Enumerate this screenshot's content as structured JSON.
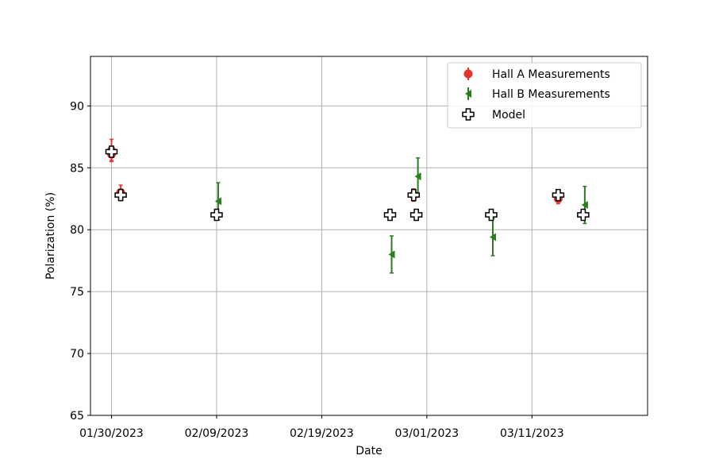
{
  "chart_data": {
    "type": "scatter",
    "xlabel": "Date",
    "ylabel": "Polarization (%)",
    "xlim": [
      "2023-01-28",
      "2023-03-22"
    ],
    "ylim": [
      65,
      94
    ],
    "xticks": [
      {
        "date": "2023-01-30",
        "label": "01/30/2023"
      },
      {
        "date": "2023-02-09",
        "label": "02/09/2023"
      },
      {
        "date": "2023-02-19",
        "label": "02/19/2023"
      },
      {
        "date": "2023-03-01",
        "label": "03/01/2023"
      },
      {
        "date": "2023-03-11",
        "label": "03/11/2023"
      }
    ],
    "yticks": [
      65,
      70,
      75,
      80,
      85,
      90
    ],
    "grid": true,
    "legend_position": "top-right",
    "series": [
      {
        "name": "Hall A Measurements",
        "marker": "circle",
        "color": "#e8322c",
        "points": [
          {
            "x": "2023-01-30 00:00",
            "y": 86.4,
            "err": 0.9
          },
          {
            "x": "2023-01-30 00:00",
            "y": 86.1,
            "err": 0.5
          },
          {
            "x": "2023-01-30 21:00",
            "y": 83.0,
            "err": 0.6
          },
          {
            "x": "2023-02-27 18:00",
            "y": 82.8,
            "err": 0.5
          },
          {
            "x": "2023-03-13 12:00",
            "y": 82.5,
            "err": 0.4
          }
        ]
      },
      {
        "name": "Hall B Measurements",
        "marker": "triangle-left",
        "color": "#2a7d1f",
        "points": [
          {
            "x": "2023-02-09 00:00",
            "y": 82.3,
            "err": 1.5
          },
          {
            "x": "2023-02-25 12:00",
            "y": 78.0,
            "err": 1.5
          },
          {
            "x": "2023-02-28 00:00",
            "y": 84.3,
            "err": 1.5
          },
          {
            "x": "2023-03-07 03:00",
            "y": 79.4,
            "err": 1.5
          },
          {
            "x": "2023-03-15 21:00",
            "y": 82.0,
            "err": 1.5
          }
        ]
      },
      {
        "name": "Model",
        "marker": "plus",
        "color": "#000000",
        "points": [
          {
            "x": "2023-01-30 00:00",
            "y": 86.3
          },
          {
            "x": "2023-01-30 21:00",
            "y": 82.8
          },
          {
            "x": "2023-02-09 00:00",
            "y": 81.2
          },
          {
            "x": "2023-02-25 12:00",
            "y": 81.2
          },
          {
            "x": "2023-02-27 18:00",
            "y": 82.8
          },
          {
            "x": "2023-02-28 00:00",
            "y": 81.2
          },
          {
            "x": "2023-03-07 03:00",
            "y": 81.2
          },
          {
            "x": "2023-03-13 12:00",
            "y": 82.8
          },
          {
            "x": "2023-03-15 21:00",
            "y": 81.2
          }
        ]
      }
    ]
  }
}
